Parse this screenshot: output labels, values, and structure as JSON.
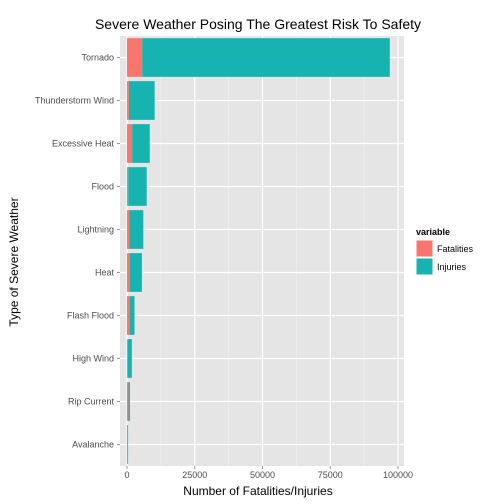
{
  "chart_data": {
    "type": "bar",
    "orientation": "horizontal",
    "stacked": true,
    "title": "Severe Weather Posing The Greatest Risk To Safety",
    "xlabel": "Number of Fatalities/Injuries",
    "ylabel": "Type of Severe Weather",
    "xlim": [
      0,
      100000
    ],
    "x_ticks": [
      0,
      25000,
      50000,
      75000,
      100000
    ],
    "x_tick_labels": [
      "0",
      "25000",
      "50000",
      "75000",
      "100000"
    ],
    "grid": true,
    "legend_position": "right",
    "legend_title": "variable",
    "categories": [
      "Tornado",
      "Thunderstorm Wind",
      "Excessive Heat",
      "Flood",
      "Lightning",
      "Heat",
      "Flash Flood",
      "High Wind",
      "Rip Current",
      "Avalanche"
    ],
    "series": [
      {
        "name": "Fatalities",
        "color": "#F8766D",
        "values": [
          5630,
          700,
          1900,
          470,
          820,
          1100,
          980,
          290,
          570,
          220
        ]
      },
      {
        "name": "Injuries",
        "color": "#17B3B1",
        "values": [
          91350,
          9500,
          6500,
          6800,
          5200,
          4400,
          1800,
          1500,
          520,
          170
        ]
      }
    ]
  }
}
